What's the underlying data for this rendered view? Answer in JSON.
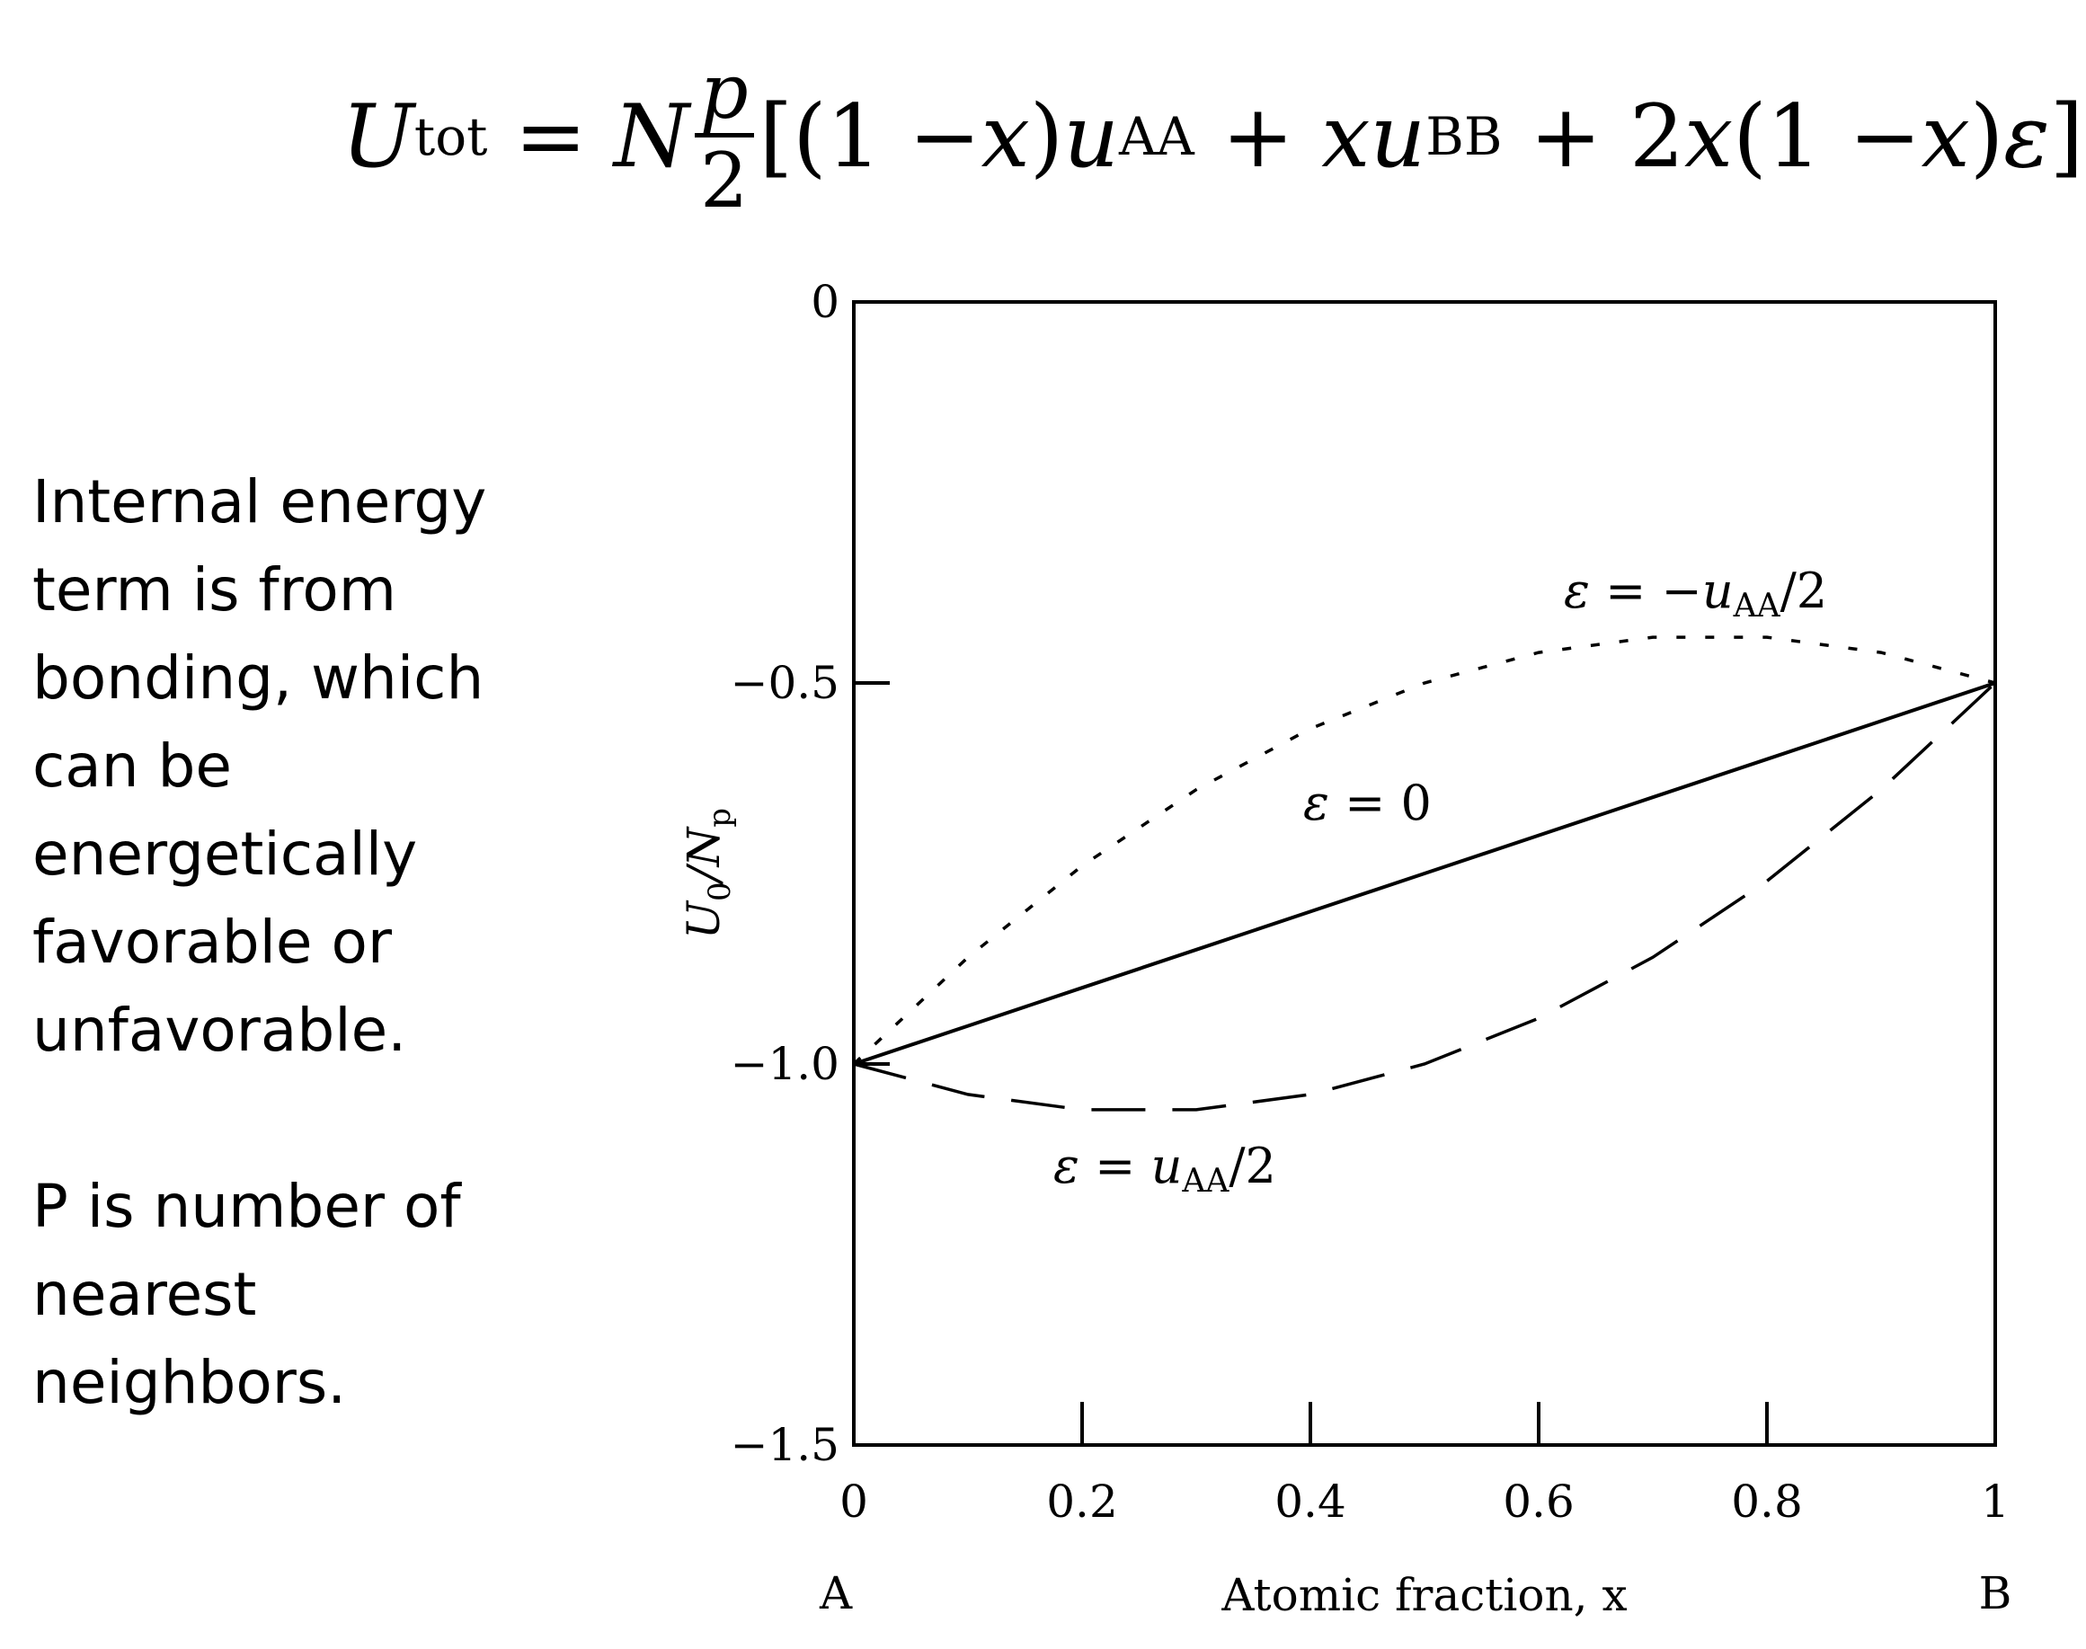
{
  "formula": {
    "lhs": "U",
    "lhs_sub": "tot",
    "eq": "=",
    "N": "N",
    "frac_num": "p",
    "frac_den": "2",
    "bracket_open": "[(1 − ",
    "x1": "x",
    "part2": ")",
    "u1": "u",
    "u1_sub": "AA",
    "plus1": " + ",
    "x2": "x",
    "u2": "u",
    "u2_sub": "BB",
    "plus2": " + 2",
    "x3": "x",
    "part3": "(1 − ",
    "x4": "x",
    "part4": ")",
    "eps": "ε",
    "bracket_close": "]"
  },
  "side_text": {
    "paragraph1": "Internal energy term is from bonding, which can be energetically favorable or unfavorable.",
    "paragraph2": "P is number of nearest neighbors."
  },
  "chart_data": {
    "type": "line",
    "xlabel": "Atomic fraction, x",
    "ylabel": "U0/Np",
    "ylabel_main": "U",
    "ylabel_sub1": "0",
    "ylabel_mid": "/N",
    "ylabel_sub2": "p",
    "xlim": [
      0,
      1
    ],
    "ylim": [
      -1.5,
      0
    ],
    "x_ticks": [
      0,
      0.2,
      0.4,
      0.6,
      0.8,
      1
    ],
    "x_tick_labels": [
      "0",
      "0.2",
      "0.4",
      "0.6",
      "0.8",
      "1"
    ],
    "y_ticks": [
      0,
      -0.5,
      -1.0,
      -1.5
    ],
    "y_tick_labels": [
      "0",
      "−0.5",
      "−1.0",
      "−1.5"
    ],
    "end_labels": {
      "left": "A",
      "right": "B"
    },
    "x": [
      0,
      0.1,
      0.2,
      0.3,
      0.4,
      0.5,
      0.6,
      0.7,
      0.8,
      0.9,
      1
    ],
    "series": [
      {
        "label": "ε = −uAA/2",
        "label_eps": "ε",
        "label_eq": " = −",
        "label_u": "u",
        "label_sub": "AA",
        "label_tail": "/2",
        "style": "dotted",
        "values": [
          -1.0,
          -0.86,
          -0.74,
          -0.64,
          -0.56,
          -0.5,
          -0.46,
          -0.44,
          -0.44,
          -0.46,
          -0.5
        ]
      },
      {
        "label": "ε = 0",
        "label_eps": "ε",
        "label_eq": " = 0",
        "label_u": "",
        "label_sub": "",
        "label_tail": "",
        "style": "solid",
        "values": [
          -1.0,
          -0.95,
          -0.9,
          -0.85,
          -0.8,
          -0.75,
          -0.7,
          -0.65,
          -0.6,
          -0.55,
          -0.5
        ]
      },
      {
        "label": "ε = uAA/2",
        "label_eps": "ε",
        "label_eq": " = ",
        "label_u": "u",
        "label_sub": "AA",
        "label_tail": "/2",
        "style": "dashed",
        "values": [
          -1.0,
          -1.04,
          -1.06,
          -1.06,
          -1.04,
          -1.0,
          -0.94,
          -0.86,
          -0.76,
          -0.64,
          -0.5
        ]
      }
    ]
  }
}
